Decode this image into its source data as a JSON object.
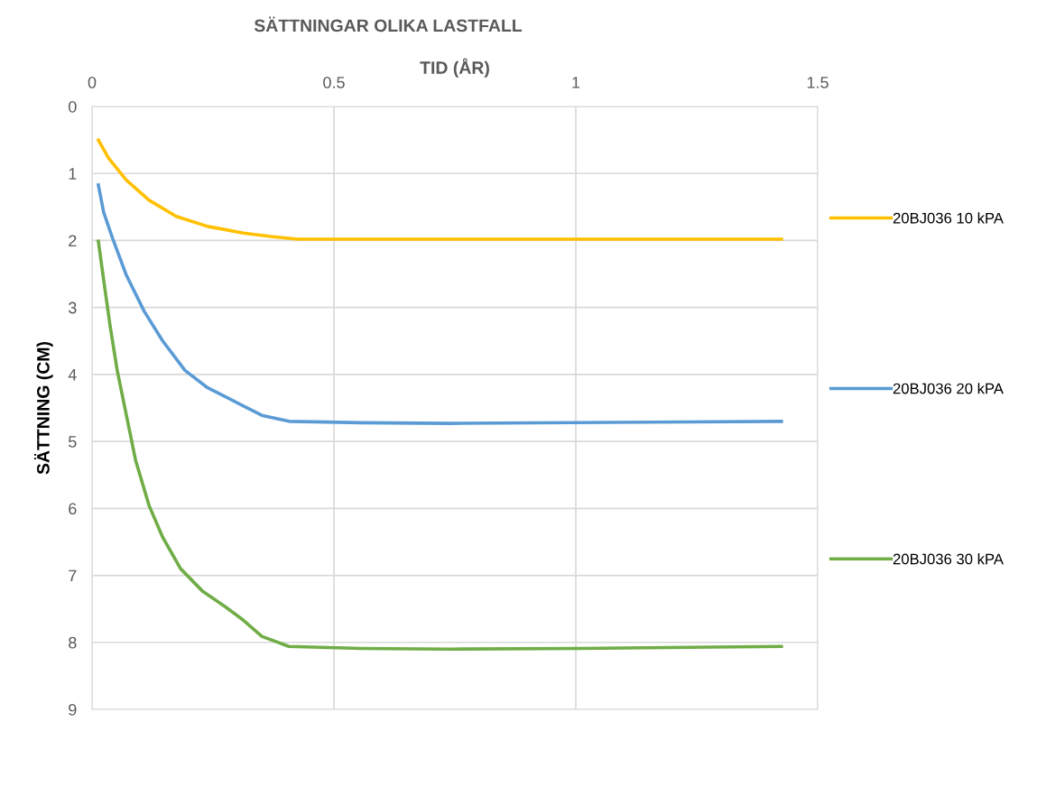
{
  "chart_data": {
    "type": "line",
    "title": "SÄTTNINGAR OLIKA LASTFALL",
    "xlabel": "TID (ÅR)",
    "ylabel": "SÄTTNING (CM)",
    "xlim": [
      0,
      1.5
    ],
    "xticks": [
      0,
      0.5,
      1,
      1.5
    ],
    "ylim": [
      9,
      0
    ],
    "yticks": [
      0,
      1,
      2,
      3,
      4,
      5,
      6,
      7,
      8,
      9
    ],
    "grid": true,
    "legend": "right",
    "marker": "none",
    "line_style": "solid",
    "series": [
      {
        "name": "20BJ036 10 kPA",
        "color": "#ffc000",
        "x": [
          0.013,
          0.034,
          0.071,
          0.118,
          0.174,
          0.239,
          0.313,
          0.369,
          0.425,
          0.556,
          1.425
        ],
        "values": [
          0.5,
          0.77,
          1.1,
          1.4,
          1.64,
          1.79,
          1.89,
          1.94,
          1.98,
          1.98,
          1.98
        ]
      },
      {
        "name": "20BJ036 20 kPA",
        "color": "#5b9bd5",
        "x": [
          0.013,
          0.024,
          0.043,
          0.071,
          0.108,
          0.146,
          0.192,
          0.239,
          0.313,
          0.351,
          0.407,
          0.556,
          0.743,
          1.425
        ],
        "values": [
          1.17,
          1.58,
          1.98,
          2.52,
          3.06,
          3.5,
          3.94,
          4.2,
          4.47,
          4.61,
          4.7,
          4.72,
          4.73,
          4.7
        ]
      },
      {
        "name": "20BJ036 30 kPA",
        "color": "#70ad47",
        "x": [
          0.013,
          0.024,
          0.037,
          0.052,
          0.071,
          0.09,
          0.118,
          0.146,
          0.183,
          0.229,
          0.276,
          0.313,
          0.351,
          0.407,
          0.556,
          0.743,
          1.004,
          1.425
        ],
        "values": [
          2.01,
          2.59,
          3.26,
          3.94,
          4.61,
          5.28,
          5.96,
          6.43,
          6.9,
          7.24,
          7.47,
          7.67,
          7.91,
          8.06,
          8.09,
          8.1,
          8.09,
          8.06
        ]
      }
    ]
  }
}
